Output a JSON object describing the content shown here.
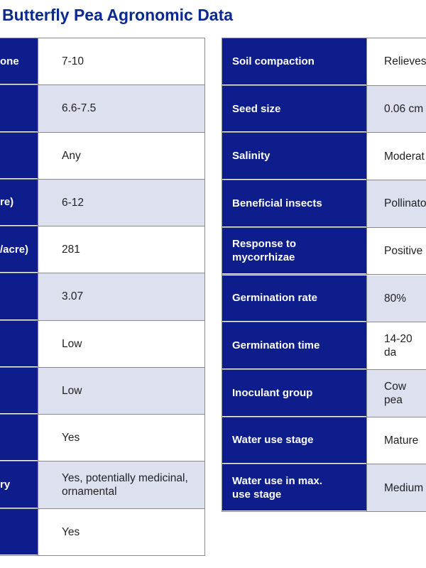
{
  "title": "Butterfly Pea Agronomic Data",
  "left_table": {
    "rows": [
      {
        "label": "one",
        "value": "7-10"
      },
      {
        "value": "6.6-7.5"
      },
      {
        "value": "Any"
      },
      {
        "label": "re)",
        "value": "6-12"
      },
      {
        "label": "/acre)",
        "value": "281"
      },
      {
        "value": "3.07"
      },
      {
        "value": "Low"
      },
      {
        "value": "Low"
      },
      {
        "value": "Yes"
      },
      {
        "label": "ry",
        "value": "Yes, potentially medicinal,\nornamental"
      },
      {
        "value": "Yes"
      }
    ]
  },
  "right_table": {
    "rows": [
      {
        "label": "Soil compaction",
        "value": "Relieves"
      },
      {
        "label": "Seed size",
        "value": "0.06 cm"
      },
      {
        "label": "Salinity",
        "value": "Moderat"
      },
      {
        "label": "Beneficial insects",
        "value": "Pollinato"
      },
      {
        "label": "Response to\nmycorrhizae",
        "value": "Positive"
      },
      {
        "label": "Germination rate",
        "value": "80%"
      },
      {
        "label": "Germination time",
        "value": "14-20 da"
      },
      {
        "label": "Inoculant group",
        "value": "Cow pea"
      },
      {
        "label": "Water use stage",
        "value": "Mature"
      },
      {
        "label": "Water use in max.\nuse stage",
        "value": "Medium"
      }
    ]
  }
}
